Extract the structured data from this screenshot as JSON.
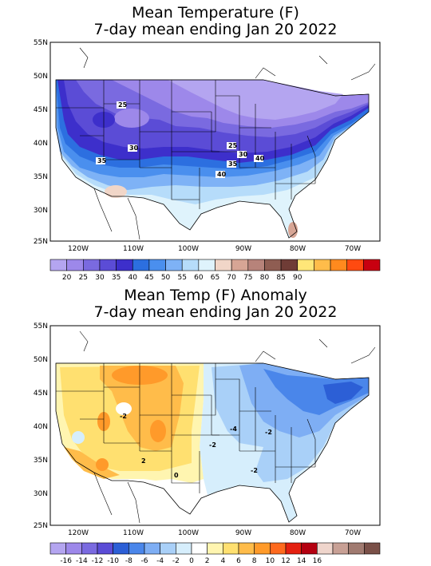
{
  "panels": [
    {
      "title_line1": "Mean Temperature (F)",
      "title_line2": "7-day mean ending Jan 20 2022",
      "lat_labels": [
        "55N",
        "50N",
        "45N",
        "40N",
        "35N",
        "30N",
        "25N"
      ],
      "lon_labels": [
        "120W",
        "110W",
        "100W",
        "90W",
        "80W",
        "70W"
      ],
      "contour_labels": [
        "25",
        "30",
        "25",
        "30",
        "35",
        "35",
        "40",
        "40"
      ],
      "colorbar": {
        "colors": [
          "#b4a5f0",
          "#9d88ea",
          "#7a6ae0",
          "#5b4cd6",
          "#3d2fcb",
          "#2c6fe0",
          "#4a8fee",
          "#7eb2f6",
          "#b6dcfa",
          "#dff3fc",
          "#f1d6c8",
          "#d7a595",
          "#b7837a",
          "#8f5d52",
          "#6f3c36",
          "#ffe678",
          "#ffbc4a",
          "#ff8a1e",
          "#ff4a10",
          "#c80010"
        ],
        "labels": [
          "20",
          "25",
          "30",
          "35",
          "40",
          "45",
          "50",
          "55",
          "60",
          "65",
          "70",
          "75",
          "80",
          "85",
          "90"
        ]
      }
    },
    {
      "title_line1": "Mean Temp (F) Anomaly",
      "title_line2": "7-day mean ending Jan 20 2022",
      "lat_labels": [
        "55N",
        "50N",
        "45N",
        "40N",
        "35N",
        "30N",
        "25N"
      ],
      "lon_labels": [
        "120W",
        "110W",
        "100W",
        "90W",
        "80W",
        "70W"
      ],
      "contour_labels": [
        "-4",
        "-2",
        "-2",
        "-2",
        "-2",
        "2",
        "0"
      ],
      "colorbar": {
        "colors": [
          "#b4a5f0",
          "#9d88ea",
          "#7a6ae0",
          "#5b4cd6",
          "#2c5fd6",
          "#4a86ea",
          "#7eaef4",
          "#a9d0f8",
          "#d6eefc",
          "#ffffff",
          "#fff5b0",
          "#ffe070",
          "#ffbc4a",
          "#ff9a2a",
          "#ff6a1e",
          "#e42010",
          "#b40010",
          "#efd5cc",
          "#c8a095",
          "#a07a70",
          "#7a5048"
        ],
        "labels": [
          "-16",
          "-14",
          "-12",
          "-10",
          "-8",
          "-6",
          "-4",
          "-2",
          "0",
          "2",
          "4",
          "6",
          "8",
          "10",
          "12",
          "14",
          "16"
        ]
      }
    }
  ]
}
